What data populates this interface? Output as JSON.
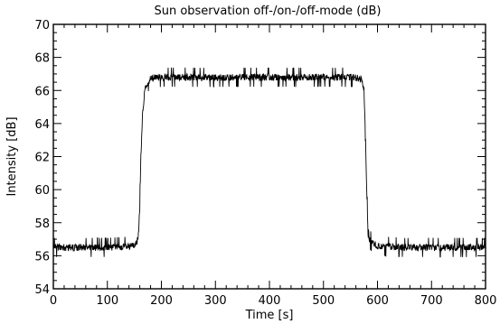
{
  "chart_data": {
    "type": "line",
    "title": "Sun observation off-/on-/off-mode (dB)",
    "xlabel": "Time [s]",
    "ylabel": "Intensity [dB]",
    "xlim": [
      0,
      800
    ],
    "ylim": [
      54,
      70
    ],
    "x_ticks": [
      0,
      100,
      200,
      300,
      400,
      500,
      600,
      700,
      800
    ],
    "y_ticks": [
      54,
      56,
      58,
      60,
      62,
      64,
      66,
      68,
      70
    ],
    "x_tick_labels": [
      "0",
      "100",
      "200",
      "300",
      "400",
      "500",
      "600",
      "700",
      "800"
    ],
    "y_tick_labels": [
      "54",
      "56",
      "58",
      "60",
      "62",
      "64",
      "66",
      "68",
      "70"
    ],
    "grid": false,
    "legend": "none",
    "series": [
      {
        "color": "#000000",
        "x": [
          0,
          50,
          100,
          150,
          155,
          158,
          160,
          162,
          165,
          168,
          170,
          175,
          180,
          200,
          250,
          300,
          350,
          400,
          450,
          500,
          550,
          570,
          575,
          578,
          580,
          582,
          585,
          590,
          600,
          650,
          700,
          750,
          800
        ],
        "y": [
          56.5,
          56.5,
          56.5,
          56.6,
          56.8,
          57.5,
          59.0,
          62.0,
          64.5,
          65.6,
          66.1,
          66.5,
          66.7,
          66.8,
          66.8,
          66.8,
          66.8,
          66.8,
          66.8,
          66.8,
          66.8,
          66.7,
          66.0,
          63.0,
          60.0,
          58.0,
          57.0,
          56.8,
          56.6,
          56.5,
          56.5,
          56.5,
          56.5
        ],
        "noise_db": 0.3
      }
    ]
  }
}
